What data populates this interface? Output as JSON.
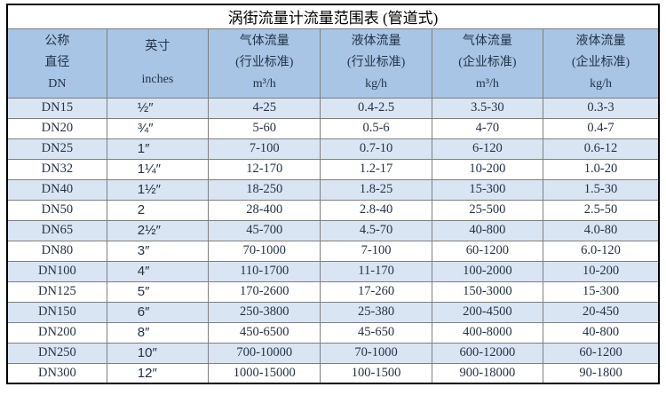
{
  "title": "涡街流量计流量范围表 (管道式)",
  "colors": {
    "header_bg": "#a8c5e5",
    "stripe_bg": "#d9e5f3",
    "grid_line": "#7f7f7f",
    "outer_border": "#000000",
    "body_text": "#243246",
    "title_text": "#000000"
  },
  "header": {
    "columns": [
      {
        "lines": [
          "公称",
          "直径",
          "DN"
        ]
      },
      {
        "lines": [
          "英寸",
          "inches"
        ]
      },
      {
        "lines": [
          "气体流量",
          "(行业标准)",
          "m³/h"
        ]
      },
      {
        "lines": [
          "液体流量",
          "(行业标准)",
          "kg/h"
        ]
      },
      {
        "lines": [
          "气体流量",
          "(企业标准)",
          "m³/h"
        ]
      },
      {
        "lines": [
          "液体流量",
          "(企业标准)",
          "kg/h"
        ]
      }
    ]
  },
  "rows": [
    {
      "dn": "DN15",
      "inches": "½″",
      "gas_industry": "4-25",
      "liquid_industry": "0.4-2.5",
      "gas_enterprise": "3.5-30",
      "liquid_enterprise": "0.3-3"
    },
    {
      "dn": "DN20",
      "inches": "¾″",
      "gas_industry": "5-60",
      "liquid_industry": "0.5-6",
      "gas_enterprise": "4-70",
      "liquid_enterprise": "0.4-7"
    },
    {
      "dn": "DN25",
      "inches": "1″",
      "gas_industry": "7-100",
      "liquid_industry": "0.7-10",
      "gas_enterprise": "6-120",
      "liquid_enterprise": "0.6-12"
    },
    {
      "dn": "DN32",
      "inches": "1¼″",
      "gas_industry": "12-170",
      "liquid_industry": "1.2-17",
      "gas_enterprise": "10-200",
      "liquid_enterprise": "1.0-20"
    },
    {
      "dn": "DN40",
      "inches": "1½″",
      "gas_industry": "18-250",
      "liquid_industry": "1.8-25",
      "gas_enterprise": "15-300",
      "liquid_enterprise": "1.5-30"
    },
    {
      "dn": "DN50",
      "inches": "2",
      "gas_industry": "28-400",
      "liquid_industry": "2.8-40",
      "gas_enterprise": "25-500",
      "liquid_enterprise": "2.5-50"
    },
    {
      "dn": "DN65",
      "inches": "2½″",
      "gas_industry": "45-700",
      "liquid_industry": "4.5-70",
      "gas_enterprise": "40-800",
      "liquid_enterprise": "4.0-80"
    },
    {
      "dn": "DN80",
      "inches": "3″",
      "gas_industry": "70-1000",
      "liquid_industry": "7-100",
      "gas_enterprise": "60-1200",
      "liquid_enterprise": "6.0-120"
    },
    {
      "dn": "DN100",
      "inches": "4″",
      "gas_industry": "110-1700",
      "liquid_industry": "11-170",
      "gas_enterprise": "100-2000",
      "liquid_enterprise": "10-200"
    },
    {
      "dn": "DN125",
      "inches": "5″",
      "gas_industry": "170-2600",
      "liquid_industry": "17-260",
      "gas_enterprise": "150-3000",
      "liquid_enterprise": "15-300"
    },
    {
      "dn": "DN150",
      "inches": "6″",
      "gas_industry": "250-3800",
      "liquid_industry": "25-380",
      "gas_enterprise": "200-4500",
      "liquid_enterprise": "20-450"
    },
    {
      "dn": "DN200",
      "inches": "8″",
      "gas_industry": "450-6500",
      "liquid_industry": "45-650",
      "gas_enterprise": "400-8000",
      "liquid_enterprise": "40-800"
    },
    {
      "dn": "DN250",
      "inches": "10″",
      "gas_industry": "700-10000",
      "liquid_industry": "70-1000",
      "gas_enterprise": "600-12000",
      "liquid_enterprise": "60-1200"
    },
    {
      "dn": "DN300",
      "inches": "12″",
      "gas_industry": "1000-15000",
      "liquid_industry": "100-1500",
      "gas_enterprise": "900-18000",
      "liquid_enterprise": "90-1800"
    }
  ]
}
